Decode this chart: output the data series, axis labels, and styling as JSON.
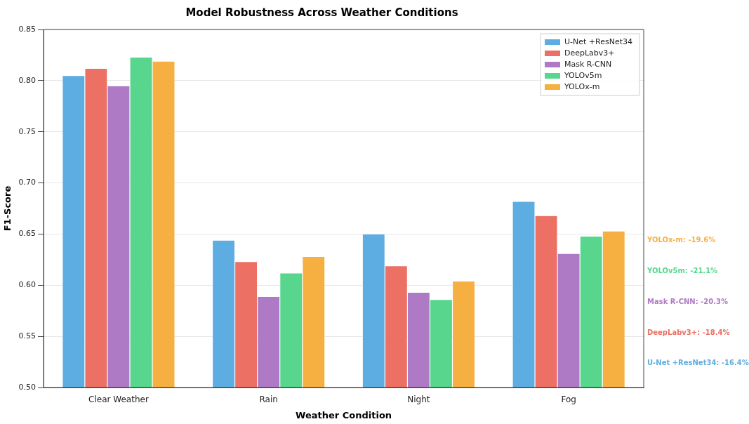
{
  "chart_data": {
    "type": "bar",
    "title": "Model Robustness Across Weather Conditions",
    "xlabel": "Weather Condition",
    "ylabel": "F1-Score",
    "categories": [
      "Clear Weather",
      "Rain",
      "Night",
      "Fog"
    ],
    "series": [
      {
        "name": "U-Net +ResNet34",
        "color": "#5dade2",
        "values": [
          0.805,
          0.644,
          0.65,
          0.682
        ]
      },
      {
        "name": "DeepLabv3+",
        "color": "#ec7063",
        "values": [
          0.812,
          0.623,
          0.619,
          0.668
        ]
      },
      {
        "name": "Mask R-CNN",
        "color": "#af7ac5",
        "values": [
          0.795,
          0.589,
          0.593,
          0.631
        ]
      },
      {
        "name": "YOLOv5m",
        "color": "#58d68d",
        "values": [
          0.823,
          0.612,
          0.586,
          0.648
        ]
      },
      {
        "name": "YOLOx-m",
        "color": "#f5b041",
        "values": [
          0.819,
          0.628,
          0.604,
          0.653
        ]
      }
    ],
    "ylim": [
      0.5,
      0.85
    ],
    "yticks": [
      {
        "value": 0.5,
        "label": "0.50"
      },
      0.55,
      {
        "value": 0.6,
        "label": "0.60"
      },
      0.65,
      {
        "value": 0.7,
        "label": "0.70"
      },
      0.75,
      {
        "value": 0.8,
        "label": "0.80"
      },
      0.85
    ],
    "grid": "y",
    "legend": "top right",
    "annotations": [
      "YOLOx-m: -19.6%",
      "YOLOv5m: -21.1%",
      "Mask R-CNN: -20.3%",
      "DeepLabv3+: -18.4%",
      "U-Net +ResNet34: -16.4%"
    ]
  }
}
